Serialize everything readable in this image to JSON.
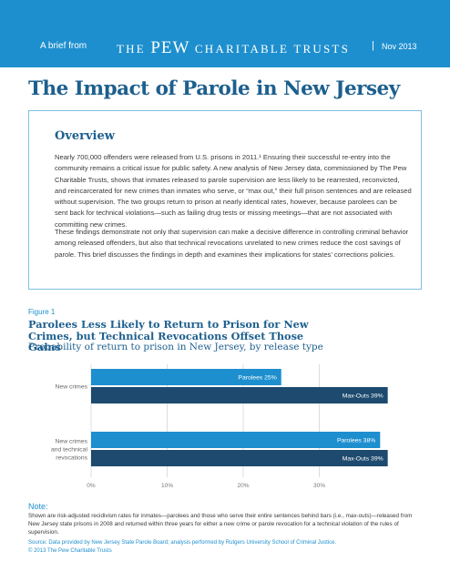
{
  "header": {
    "brief_prefix": "A brief from",
    "org_the": "THE",
    "org_pew": "PEW",
    "org_rest": "CHARITABLE TRUSTS",
    "separator": "|",
    "date": "Nov 2013",
    "brand_color": "#1e8fce"
  },
  "title": "The Impact of Parole in New Jersey",
  "overview": {
    "heading": "Overview",
    "paragraph1": "Nearly 700,000 offenders were released from U.S. prisons in 2011.¹ Ensuring their successful re-entry into the community remains a critical issue for public safety. A new analysis of New Jersey data, commissioned by The Pew Charitable Trusts, shows that inmates released to parole supervision are less likely to be rearrested, reconvicted, and reincarcerated for new crimes than inmates who serve, or “max out,” their full prison sentences and are released without supervision. The two groups return to prison at nearly identical rates, however, because parolees can be sent back for technical violations—such as failing drug tests or missing meetings—that are not associated with committing new crimes.",
    "paragraph2": "These findings demonstrate not only that supervision can make a decisive difference in controlling criminal behavior among released offenders, but also that technical revocations unrelated to new crimes reduce the cost savings of parole. This brief discusses the findings in depth and examines their implications for states’ corrections policies."
  },
  "figure": {
    "label": "Figure 1",
    "title": "Parolees Less Likely to Return to Prison for New Crimes, but Technical Revocations Offset Those Gains",
    "subtitle": "Probability of return to prison in New Jersey, by release type"
  },
  "chart_data": {
    "type": "bar",
    "orientation": "horizontal",
    "categories": [
      "New crimes",
      "New crimes and technical revocations"
    ],
    "category_lines": [
      [
        "New crimes"
      ],
      [
        "New crimes",
        "and technical",
        "revocations"
      ]
    ],
    "series": [
      {
        "name": "Parolees",
        "values": [
          25,
          38
        ],
        "labels": [
          "25%",
          "38%"
        ],
        "color": "#1e8fce"
      },
      {
        "name": "Max-Outs",
        "values": [
          39,
          39
        ],
        "labels": [
          "39%",
          "39%"
        ],
        "color": "#1d4a6e"
      }
    ],
    "xlim": [
      0,
      40
    ],
    "xticks": [
      0,
      10,
      20,
      30
    ],
    "xtick_labels": [
      "0%",
      "10%",
      "20%",
      "30%"
    ],
    "grid": true
  },
  "note": {
    "heading": "Note:",
    "text": "Shown are risk-adjusted recidivism rates for inmates—parolees and those who serve their entire sentences behind bars (i.e., max-outs)—released from New Jersey state prisons in 2008 and returned within three years for either a new crime or parole revocation for a technical violation of the rules of supervision.",
    "source": "Source: Data provided by New Jersey State Parole Board; analysis performed by Rutgers University School of Criminal Justice.",
    "copyright": "© 2013 The Pew Charitable Trusts"
  }
}
